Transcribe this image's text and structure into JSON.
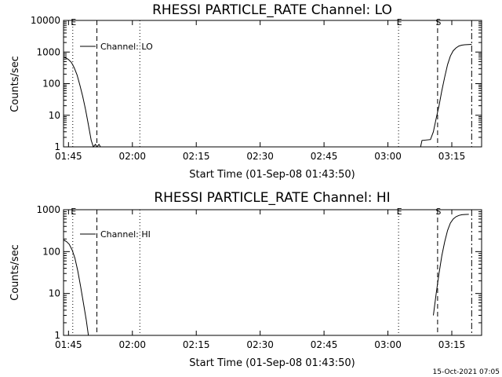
{
  "chart_data": [
    {
      "type": "line",
      "title": "RHESSI PARTICLE_RATE Channel: LO",
      "xlabel": "Start Time (01-Sep-08 01:43:50)",
      "ylabel": "Counts/sec",
      "y_scale": "log",
      "ylim": [
        1,
        10000
      ],
      "xlim": [
        "01:43:50",
        "03:22:00"
      ],
      "x_ticks": [
        "01:45",
        "02:00",
        "02:15",
        "02:30",
        "02:45",
        "03:00",
        "03:15"
      ],
      "y_ticks": [
        "1",
        "10",
        "100",
        "1000",
        "10000"
      ],
      "legend": {
        "label": "Channel: LO",
        "position": "top-left"
      },
      "markers": [
        {
          "label": "E",
          "time": "01:46:00",
          "style": "dotted"
        },
        {
          "time": "01:51:40",
          "style": "dashed"
        },
        {
          "time": "02:01:45",
          "style": "dotted"
        },
        {
          "label": "E",
          "time": "03:02:30",
          "style": "dotted"
        },
        {
          "label": "S",
          "time": "03:11:40",
          "style": "dashed"
        },
        {
          "time": "03:19:40",
          "style": "dashdot"
        }
      ],
      "series": [
        {
          "segments": [
            [
              [
                "01:43:50",
                700
              ],
              [
                "01:44:30",
                640
              ],
              [
                "01:45:00",
                580
              ],
              [
                "01:45:40",
                470
              ],
              [
                "01:46:20",
                320
              ],
              [
                "01:47:00",
                190
              ],
              [
                "01:47:40",
                90
              ],
              [
                "01:48:20",
                40
              ],
              [
                "01:49:00",
                15
              ],
              [
                "01:49:40",
                5
              ],
              [
                "01:50:20",
                1.6
              ],
              [
                "01:50:50",
                1
              ],
              [
                "01:51:20",
                1.2
              ],
              [
                "01:51:40",
                1
              ],
              [
                "01:52:10",
                1.2
              ],
              [
                "01:52:30",
                1
              ]
            ],
            [
              [
                "03:07:40",
                1
              ],
              [
                "03:08:00",
                1.6
              ],
              [
                "03:10:00",
                1.7
              ],
              [
                "03:10:40",
                3
              ],
              [
                "03:11:20",
                8
              ],
              [
                "03:12:00",
                20
              ],
              [
                "03:12:40",
                60
              ],
              [
                "03:13:20",
                160
              ],
              [
                "03:14:00",
                400
              ],
              [
                "03:14:40",
                750
              ],
              [
                "03:15:20",
                1100
              ],
              [
                "03:16:00",
                1350
              ],
              [
                "03:16:40",
                1550
              ],
              [
                "03:17:20",
                1650
              ],
              [
                "03:18:00",
                1700
              ],
              [
                "03:19:40",
                1750
              ]
            ]
          ]
        }
      ]
    },
    {
      "type": "line",
      "title": "RHESSI PARTICLE_RATE Channel: HI",
      "xlabel": "Start Time (01-Sep-08 01:43:50)",
      "ylabel": "Counts/sec",
      "y_scale": "log",
      "ylim": [
        1,
        1000
      ],
      "xlim": [
        "01:43:50",
        "03:22:00"
      ],
      "x_ticks": [
        "01:45",
        "02:00",
        "02:15",
        "02:30",
        "02:45",
        "03:00",
        "03:15"
      ],
      "y_ticks": [
        "1",
        "10",
        "100",
        "1000"
      ],
      "legend": {
        "label": "Channel: HI",
        "position": "top-left"
      },
      "markers": [
        {
          "label": "E",
          "time": "01:46:00",
          "style": "dotted"
        },
        {
          "time": "01:51:40",
          "style": "dashed"
        },
        {
          "time": "02:01:45",
          "style": "dotted"
        },
        {
          "label": "E",
          "time": "03:02:30",
          "style": "dotted"
        },
        {
          "label": "S",
          "time": "03:11:40",
          "style": "dashed"
        },
        {
          "time": "03:19:40",
          "style": "dashdot"
        }
      ],
      "series": [
        {
          "segments": [
            [
              [
                "01:43:50",
                190
              ],
              [
                "01:44:30",
                175
              ],
              [
                "01:45:10",
                150
              ],
              [
                "01:45:50",
                110
              ],
              [
                "01:46:30",
                70
              ],
              [
                "01:47:10",
                35
              ],
              [
                "01:47:50",
                15
              ],
              [
                "01:48:30",
                6
              ],
              [
                "01:49:10",
                2.3
              ],
              [
                "01:49:40",
                1
              ]
            ],
            [
              [
                "03:10:40",
                3
              ],
              [
                "03:11:20",
                10
              ],
              [
                "03:12:00",
                30
              ],
              [
                "03:12:40",
                80
              ],
              [
                "03:13:20",
                170
              ],
              [
                "03:14:00",
                320
              ],
              [
                "03:14:40",
                480
              ],
              [
                "03:15:20",
                600
              ],
              [
                "03:16:00",
                680
              ],
              [
                "03:16:40",
                730
              ],
              [
                "03:17:20",
                760
              ],
              [
                "03:18:00",
                770
              ],
              [
                "03:19:00",
                775
              ]
            ]
          ]
        }
      ]
    }
  ],
  "footer": {
    "timestamp": "15-Oct-2021 07:05"
  }
}
